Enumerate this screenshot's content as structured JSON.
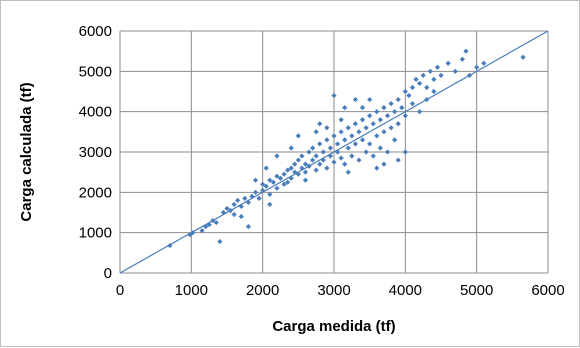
{
  "chart_data": {
    "type": "scatter",
    "title": "",
    "xlabel": "Carga medida (tf)",
    "ylabel": "Carga calculada (tf)",
    "xlim": [
      0,
      6000
    ],
    "ylim": [
      0,
      6000
    ],
    "x_ticks": [
      0,
      1000,
      2000,
      3000,
      4000,
      5000,
      6000
    ],
    "y_ticks": [
      0,
      1000,
      2000,
      3000,
      4000,
      5000,
      6000
    ],
    "x_tick_labels": [
      "0",
      "1000",
      "2000",
      "3000",
      "4000",
      "5000",
      "6000"
    ],
    "y_tick_labels": [
      "0",
      "1000",
      "2000",
      "3000",
      "4000",
      "5000",
      "6000"
    ],
    "grid": true,
    "legend": "none",
    "marker_color": "#4a7ebb",
    "line_color": "#4a7ebb",
    "reference_line": {
      "label": "y = x",
      "x": [
        0,
        6000
      ],
      "y": [
        0,
        6000
      ]
    },
    "series": [
      {
        "values_xy": [
          [
            700,
            680
          ],
          [
            980,
            950
          ],
          [
            1020,
            1000
          ],
          [
            1150,
            1050
          ],
          [
            1200,
            1150
          ],
          [
            1250,
            1200
          ],
          [
            1300,
            1300
          ],
          [
            1350,
            1250
          ],
          [
            1400,
            780
          ],
          [
            1450,
            1500
          ],
          [
            1500,
            1600
          ],
          [
            1550,
            1550
          ],
          [
            1600,
            1700
          ],
          [
            1650,
            1800
          ],
          [
            1700,
            1650
          ],
          [
            1750,
            1850
          ],
          [
            1800,
            1750
          ],
          [
            1800,
            1150
          ],
          [
            1850,
            1900
          ],
          [
            1900,
            2000
          ],
          [
            1950,
            1850
          ],
          [
            2000,
            2050
          ],
          [
            2000,
            2200
          ],
          [
            2050,
            2150
          ],
          [
            2100,
            2300
          ],
          [
            2100,
            1950
          ],
          [
            2150,
            2250
          ],
          [
            2200,
            2400
          ],
          [
            2200,
            2100
          ],
          [
            2250,
            2350
          ],
          [
            2300,
            2450
          ],
          [
            2300,
            2200
          ],
          [
            2350,
            2550
          ],
          [
            2350,
            2250
          ],
          [
            2400,
            2600
          ],
          [
            2400,
            2350
          ],
          [
            2450,
            2500
          ],
          [
            2450,
            2700
          ],
          [
            2500,
            2800
          ],
          [
            2500,
            2450
          ],
          [
            2550,
            2600
          ],
          [
            2550,
            2900
          ],
          [
            2600,
            2700
          ],
          [
            2600,
            2500
          ],
          [
            2650,
            3000
          ],
          [
            2650,
            2650
          ],
          [
            2700,
            2800
          ],
          [
            2700,
            3100
          ],
          [
            2750,
            2550
          ],
          [
            2750,
            2900
          ],
          [
            2800,
            3200
          ],
          [
            2800,
            2700
          ],
          [
            2850,
            3000
          ],
          [
            2850,
            2800
          ],
          [
            2900,
            3300
          ],
          [
            2900,
            2600
          ],
          [
            2950,
            3100
          ],
          [
            2950,
            2900
          ],
          [
            3000,
            3400
          ],
          [
            3000,
            2750
          ],
          [
            3050,
            3200
          ],
          [
            3050,
            3000
          ],
          [
            3100,
            3500
          ],
          [
            3100,
            2850
          ],
          [
            3150,
            3300
          ],
          [
            3150,
            2700
          ],
          [
            3200,
            3600
          ],
          [
            3200,
            3100
          ],
          [
            3250,
            3400
          ],
          [
            3250,
            2900
          ],
          [
            3300,
            3700
          ],
          [
            3300,
            3200
          ],
          [
            3350,
            3500
          ],
          [
            3350,
            2800
          ],
          [
            3400,
            3800
          ],
          [
            3400,
            3300
          ],
          [
            3450,
            3600
          ],
          [
            3450,
            3000
          ],
          [
            3500,
            3900
          ],
          [
            3500,
            3200
          ],
          [
            3550,
            3700
          ],
          [
            3550,
            2900
          ],
          [
            3600,
            4000
          ],
          [
            3600,
            3400
          ],
          [
            3650,
            3800
          ],
          [
            3650,
            3100
          ],
          [
            3700,
            4100
          ],
          [
            3700,
            3500
          ],
          [
            3750,
            3900
          ],
          [
            3750,
            3000
          ],
          [
            3800,
            4200
          ],
          [
            3800,
            3600
          ],
          [
            3850,
            4000
          ],
          [
            3850,
            3300
          ],
          [
            3900,
            4300
          ],
          [
            3900,
            3700
          ],
          [
            3950,
            4100
          ],
          [
            4000,
            4500
          ],
          [
            4000,
            3900
          ],
          [
            4050,
            4400
          ],
          [
            4100,
            4600
          ],
          [
            4100,
            4200
          ],
          [
            4150,
            4800
          ],
          [
            4200,
            4700
          ],
          [
            4250,
            4900
          ],
          [
            4300,
            4600
          ],
          [
            4350,
            5000
          ],
          [
            4400,
            4800
          ],
          [
            4450,
            5100
          ],
          [
            4500,
            4900
          ],
          [
            4600,
            5200
          ],
          [
            4700,
            5000
          ],
          [
            4800,
            5300
          ],
          [
            4850,
            5500
          ],
          [
            4900,
            4900
          ],
          [
            5000,
            5100
          ],
          [
            5100,
            5200
          ],
          [
            5650,
            5350
          ],
          [
            3000,
            4400
          ],
          [
            2500,
            3400
          ],
          [
            2200,
            2900
          ],
          [
            3700,
            2700
          ],
          [
            3900,
            2800
          ],
          [
            4000,
            3000
          ],
          [
            2800,
            3700
          ],
          [
            3300,
            4300
          ],
          [
            1900,
            2300
          ],
          [
            2100,
            1700
          ],
          [
            2600,
            2300
          ],
          [
            2900,
            3600
          ],
          [
            3100,
            3800
          ],
          [
            3400,
            4100
          ],
          [
            3600,
            2600
          ],
          [
            2400,
            3100
          ],
          [
            1700,
            1400
          ],
          [
            1600,
            1450
          ],
          [
            2050,
            2600
          ],
          [
            3200,
            2500
          ],
          [
            3500,
            4300
          ],
          [
            4200,
            4000
          ],
          [
            4300,
            4300
          ],
          [
            4400,
            4500
          ],
          [
            2750,
            3500
          ],
          [
            3150,
            4100
          ]
        ]
      }
    ]
  }
}
